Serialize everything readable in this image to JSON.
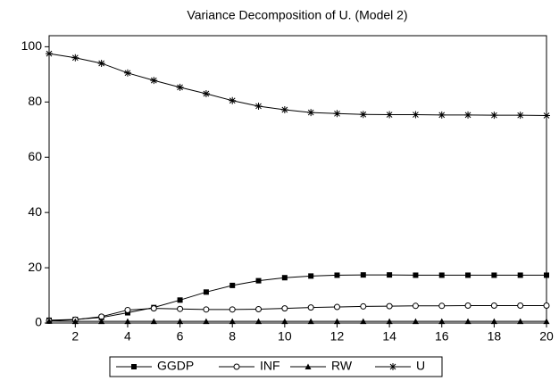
{
  "chart_data": {
    "type": "line",
    "title": "Variance Decomposition of U. (Model 2)",
    "x": [
      1,
      2,
      3,
      4,
      5,
      6,
      7,
      8,
      9,
      10,
      11,
      12,
      13,
      14,
      15,
      16,
      17,
      18,
      19,
      20
    ],
    "xlim": [
      1,
      20
    ],
    "xticks": [
      2,
      4,
      6,
      8,
      10,
      12,
      14,
      16,
      18,
      20
    ],
    "ylim": [
      0,
      104
    ],
    "yticks": [
      0,
      20,
      40,
      60,
      80,
      100
    ],
    "legend": "bottom",
    "series": [
      {
        "name": "GGDP",
        "color": "#000000",
        "marker": "square",
        "values": [
          1,
          1.3,
          2,
          3.7,
          5.6,
          8.3,
          11.2,
          13.6,
          15.3,
          16.4,
          17,
          17.3,
          17.4,
          17.4,
          17.3,
          17.3,
          17.3,
          17.3,
          17.3,
          17.3
        ]
      },
      {
        "name": "INF",
        "color": "#000000",
        "marker": "circle",
        "values": [
          0.8,
          1.2,
          2.3,
          4.7,
          5.3,
          5.1,
          4.9,
          4.9,
          5,
          5.3,
          5.6,
          5.8,
          6,
          6.1,
          6.2,
          6.2,
          6.3,
          6.3,
          6.3,
          6.3
        ]
      },
      {
        "name": "RW",
        "color": "#000000",
        "marker": "triangle",
        "values": [
          0.7,
          0.6,
          0.6,
          0.6,
          0.6,
          0.6,
          0.6,
          0.6,
          0.6,
          0.6,
          0.6,
          0.6,
          0.6,
          0.6,
          0.6,
          0.6,
          0.6,
          0.6,
          0.6,
          0.6
        ]
      },
      {
        "name": "U",
        "color": "#000000",
        "marker": "asterisk",
        "values": [
          97.5,
          96,
          94,
          90.5,
          87.8,
          85.3,
          83,
          80.5,
          78.5,
          77.2,
          76.2,
          75.8,
          75.5,
          75.4,
          75.4,
          75.3,
          75.3,
          75.2,
          75.2,
          75.1
        ]
      }
    ]
  }
}
